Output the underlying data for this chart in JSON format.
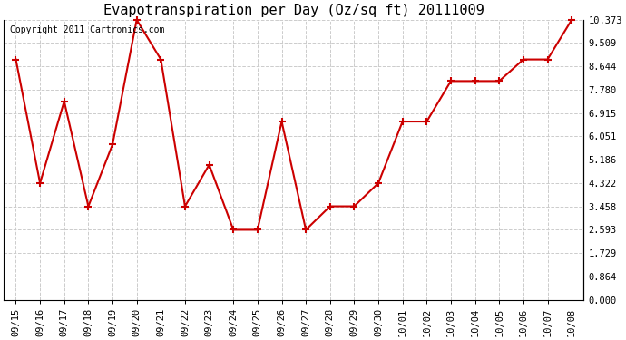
{
  "title": "Evapotranspiration per Day (Oz/sq ft) 20111009",
  "copyright_text": "Copyright 2011 Cartronics.com",
  "x_labels": [
    "09/15",
    "09/16",
    "09/17",
    "09/18",
    "09/19",
    "09/20",
    "09/21",
    "09/22",
    "09/23",
    "09/24",
    "09/25",
    "09/26",
    "09/27",
    "09/28",
    "09/29",
    "09/30",
    "10/01",
    "10/02",
    "10/03",
    "10/04",
    "10/05",
    "10/06",
    "10/07",
    "10/08"
  ],
  "y_values": [
    8.9,
    4.32,
    7.35,
    3.46,
    5.75,
    10.37,
    8.9,
    3.46,
    5.0,
    2.59,
    2.59,
    6.6,
    2.59,
    3.46,
    3.46,
    4.32,
    6.6,
    6.6,
    8.1,
    8.1,
    8.1,
    8.9,
    8.9,
    10.37
  ],
  "line_color": "#cc0000",
  "marker": "+",
  "marker_size": 6,
  "marker_linewidth": 1.5,
  "line_width": 1.5,
  "y_ticks": [
    0.0,
    0.864,
    1.729,
    2.593,
    3.458,
    4.322,
    5.186,
    6.051,
    6.915,
    7.78,
    8.644,
    9.509,
    10.373
  ],
  "y_min": 0.0,
  "y_max": 10.373,
  "background_color": "#ffffff",
  "grid_color": "#cccccc",
  "title_fontsize": 11,
  "copyright_fontsize": 7,
  "tick_fontsize": 7.5,
  "figsize": [
    6.9,
    3.75
  ],
  "dpi": 100
}
